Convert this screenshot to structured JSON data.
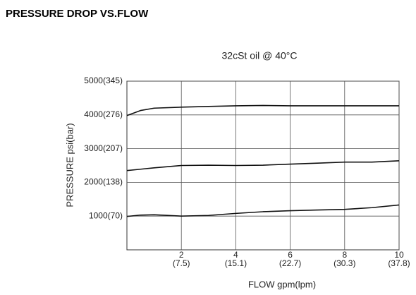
{
  "chart_data": {
    "type": "line",
    "title": "PRESSURE DROP VS.FLOW",
    "subtitle": "32cSt oil @ 40°C",
    "x_label": "FLOW gpm(lpm)",
    "y_label": "PRESSURE  psi(bar)",
    "x": [
      0,
      0.5,
      1,
      2,
      3,
      4,
      5,
      6,
      7,
      8,
      9,
      10
    ],
    "series": [
      {
        "color": "#111111",
        "values": [
          3980,
          4130,
          4200,
          4230,
          4250,
          4270,
          4280,
          4270,
          4270,
          4270,
          4270,
          4270
        ]
      },
      {
        "color": "#111111",
        "values": [
          2350,
          2390,
          2430,
          2500,
          2510,
          2500,
          2510,
          2540,
          2570,
          2600,
          2600,
          2640
        ]
      },
      {
        "color": "#111111",
        "values": [
          990,
          1030,
          1040,
          1000,
          1020,
          1080,
          1130,
          1160,
          1180,
          1200,
          1250,
          1330
        ]
      }
    ],
    "xlim": [
      0,
      10
    ],
    "ylim": [
      0,
      5000
    ],
    "xticks": [
      {
        "value": 2,
        "label": "2",
        "sublabel": "(7.5)"
      },
      {
        "value": 4,
        "label": "4",
        "sublabel": "(15.1)"
      },
      {
        "value": 6,
        "label": "6",
        "sublabel": "(22.7)"
      },
      {
        "value": 8,
        "label": "8",
        "sublabel": "(30.3)"
      },
      {
        "value": 10,
        "label": "10",
        "sublabel": "(37.8)"
      }
    ],
    "yticks": [
      {
        "value": 1000,
        "label": "1000(70)"
      },
      {
        "value": 2000,
        "label": "2000(138)"
      },
      {
        "value": 3000,
        "label": "3000(207)"
      },
      {
        "value": 4000,
        "label": "4000(276)"
      },
      {
        "value": 5000,
        "label": "5000(345)"
      }
    ],
    "grid": true
  }
}
